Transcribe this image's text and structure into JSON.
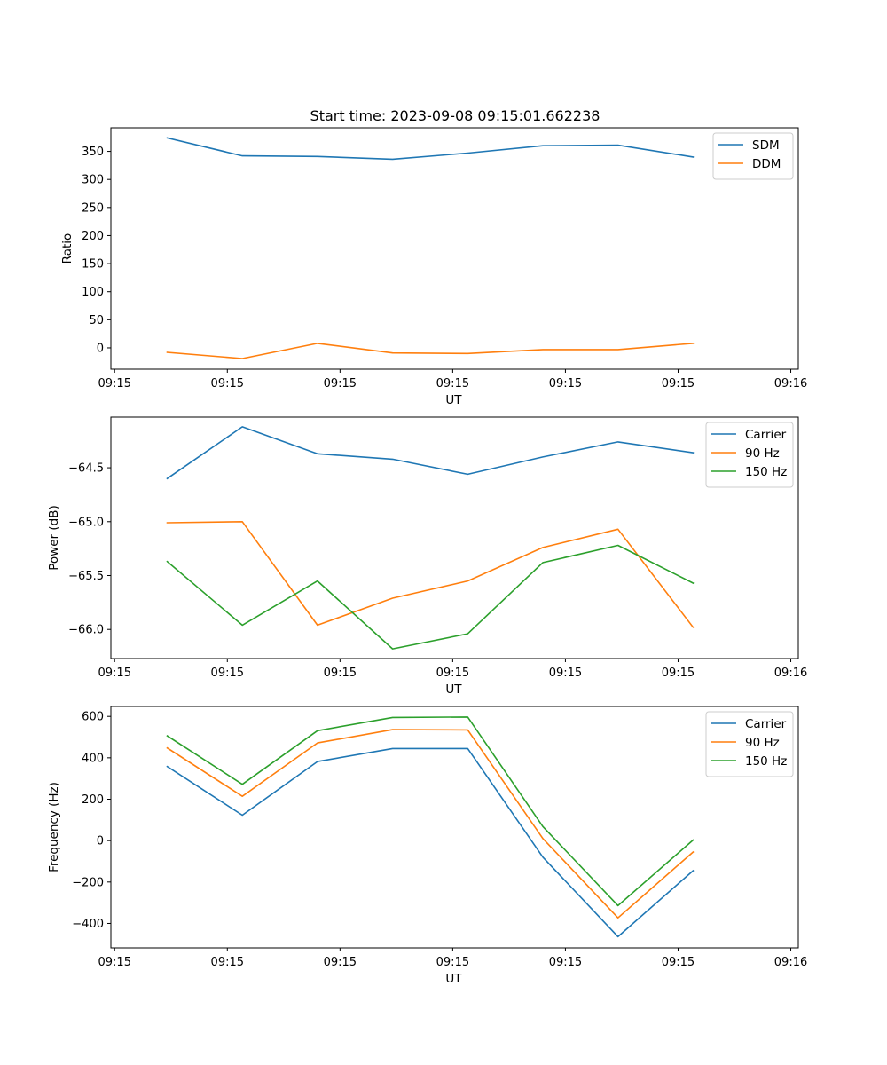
{
  "title": "Start time: 2023-09-08 09:15:01.662238",
  "colors": {
    "blue": "#1f77b4",
    "orange": "#ff7f0e",
    "green": "#2ca02c"
  },
  "chart_data": [
    {
      "type": "line",
      "ylabel": "Ratio",
      "xlabel": "UT",
      "x": [
        0,
        1,
        2,
        3,
        4,
        5,
        6,
        7
      ],
      "xlim": [
        -0.75,
        8.4
      ],
      "x_ticks": [
        -0.7,
        0.8,
        2.3,
        3.8,
        5.3,
        6.8,
        8.3
      ],
      "x_tick_labels": [
        "09:15",
        "09:15",
        "09:15",
        "09:15",
        "09:15",
        "09:15",
        "09:16"
      ],
      "ylim": [
        -38,
        392
      ],
      "y_ticks": [
        0,
        50,
        100,
        150,
        200,
        250,
        300,
        350
      ],
      "y_tick_labels": [
        "0",
        "50",
        "100",
        "150",
        "200",
        "250",
        "300",
        "350"
      ],
      "legend": "top-right",
      "series": [
        {
          "name": "SDM",
          "color": "#1f77b4",
          "values": [
            374,
            342,
            341,
            336,
            347,
            360,
            361,
            340
          ]
        },
        {
          "name": "DDM",
          "color": "#ff7f0e",
          "values": [
            -8,
            -19,
            8,
            -9,
            -10,
            -3,
            -3,
            8
          ]
        }
      ]
    },
    {
      "type": "line",
      "ylabel": "Power (dB)",
      "xlabel": "UT",
      "x": [
        0,
        1,
        2,
        3,
        4,
        5,
        6,
        7
      ],
      "xlim": [
        -0.75,
        8.4
      ],
      "x_ticks": [
        -0.7,
        0.8,
        2.3,
        3.8,
        5.3,
        6.8,
        8.3
      ],
      "x_tick_labels": [
        "09:15",
        "09:15",
        "09:15",
        "09:15",
        "09:15",
        "09:15",
        "09:16"
      ],
      "ylim": [
        -66.27,
        -64.03
      ],
      "y_ticks": [
        -64.5,
        -65.0,
        -65.5,
        -66.0
      ],
      "y_tick_labels": [
        "−64.5",
        "−65.0",
        "−65.5",
        "−66.0"
      ],
      "legend": "top-right",
      "series": [
        {
          "name": "Carrier",
          "color": "#1f77b4",
          "values": [
            -64.6,
            -64.12,
            -64.37,
            -64.42,
            -64.56,
            -64.4,
            -64.26,
            -64.36
          ]
        },
        {
          "name": "90 Hz",
          "color": "#ff7f0e",
          "values": [
            -65.01,
            -65.0,
            -65.96,
            -65.71,
            -65.55,
            -65.24,
            -65.07,
            -65.98
          ]
        },
        {
          "name": "150 Hz",
          "color": "#2ca02c",
          "values": [
            -65.37,
            -65.96,
            -65.55,
            -66.18,
            -66.04,
            -65.38,
            -65.22,
            -65.57
          ]
        }
      ]
    },
    {
      "type": "line",
      "ylabel": "Frequency (Hz)",
      "xlabel": "UT",
      "x": [
        0,
        1,
        2,
        3,
        4,
        5,
        6,
        7
      ],
      "xlim": [
        -0.75,
        8.4
      ],
      "x_ticks": [
        -0.7,
        0.8,
        2.3,
        3.8,
        5.3,
        6.8,
        8.3
      ],
      "x_tick_labels": [
        "09:15",
        "09:15",
        "09:15",
        "09:15",
        "09:15",
        "09:15",
        "09:16"
      ],
      "ylim": [
        -518,
        648
      ],
      "y_ticks": [
        600,
        400,
        200,
        0,
        -200,
        -400
      ],
      "y_tick_labels": [
        "600",
        "400",
        "200",
        "0",
        "−200",
        "−400"
      ],
      "legend": "top-right",
      "series": [
        {
          "name": "Carrier",
          "color": "#1f77b4",
          "values": [
            358,
            123,
            382,
            445,
            445,
            -80,
            -464,
            -145
          ]
        },
        {
          "name": "90 Hz",
          "color": "#ff7f0e",
          "values": [
            448,
            214,
            472,
            536,
            535,
            10,
            -373,
            -55
          ]
        },
        {
          "name": "150 Hz",
          "color": "#2ca02c",
          "values": [
            506,
            272,
            531,
            595,
            597,
            68,
            -314,
            3
          ]
        }
      ]
    }
  ]
}
